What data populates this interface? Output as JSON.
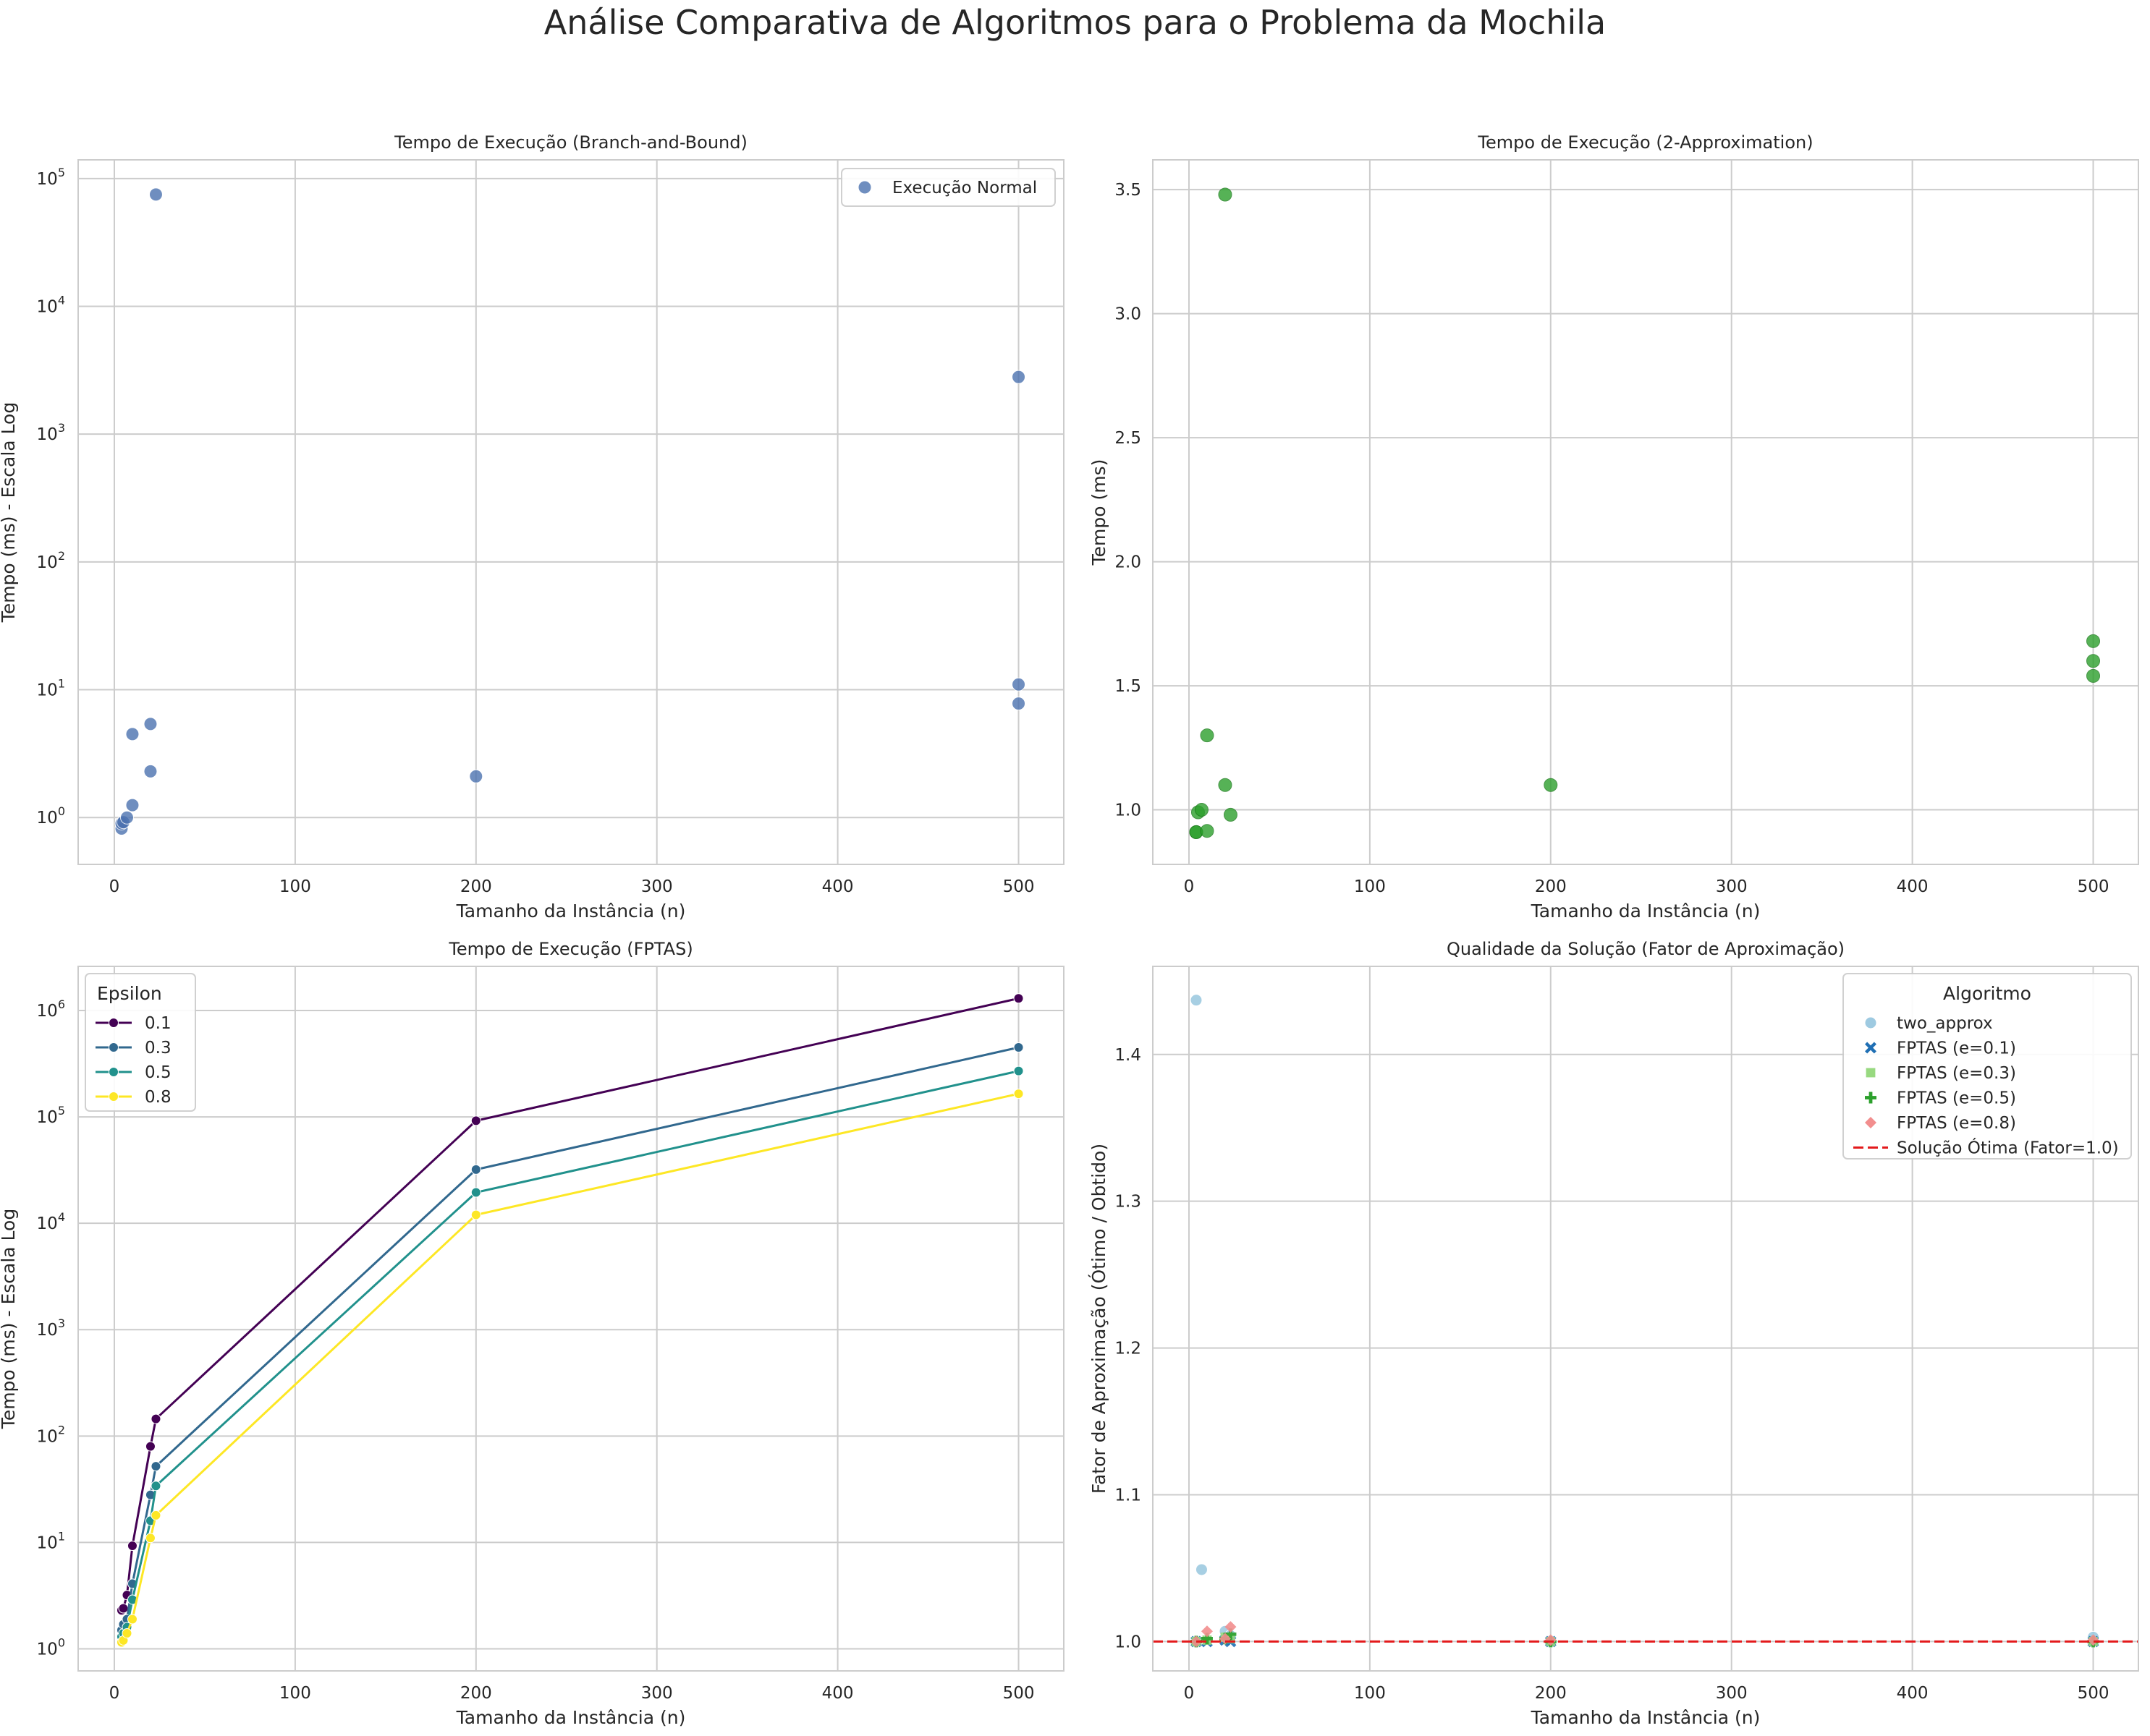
{
  "figure": {
    "suptitle": "Análise Comparativa de Algoritmos para o Problema da Mochila"
  },
  "chart_data": [
    {
      "id": "bnb",
      "type": "scatter",
      "title": "Tempo de Execução (Branch-and-Bound)",
      "xlabel": "Tamanho da Instância (n)",
      "ylabel": "Tempo (ms) - Escala Log",
      "xlim": [
        -20,
        525
      ],
      "ylim": [
        0.43,
        140000
      ],
      "yscale": "log",
      "xticks": [
        0,
        100,
        200,
        300,
        400,
        500
      ],
      "yticks": [
        1,
        10,
        100,
        1000,
        10000,
        100000
      ],
      "ytick_labels": [
        [
          "10",
          "0"
        ],
        [
          "10",
          "1"
        ],
        [
          "10",
          "2"
        ],
        [
          "10",
          "3"
        ],
        [
          "10",
          "4"
        ],
        [
          "10",
          "5"
        ]
      ],
      "grid": true,
      "legend": {
        "position": "top-right",
        "title": ""
      },
      "series": [
        {
          "name": "Execução Normal",
          "color": "#4c72b0",
          "marker": "circle",
          "x": [
            4,
            4,
            5,
            7,
            10,
            10,
            20,
            20,
            23,
            200,
            500,
            500,
            500
          ],
          "y": [
            0.82,
            0.9,
            0.92,
            1.0,
            1.25,
            4.5,
            2.3,
            5.4,
            75000,
            2.1,
            7.8,
            11,
            2800
          ]
        }
      ]
    },
    {
      "id": "two",
      "type": "scatter",
      "title": "Tempo de Execução (2-Approximation)",
      "xlabel": "Tamanho da Instância (n)",
      "ylabel": "Tempo (ms)",
      "xlim": [
        -20,
        525
      ],
      "ylim": [
        0.78,
        3.62
      ],
      "yscale": "linear",
      "xticks": [
        0,
        100,
        200,
        300,
        400,
        500
      ],
      "yticks": [
        1.0,
        1.5,
        2.0,
        2.5,
        3.0,
        3.5
      ],
      "ytick_labels": [
        "1.0",
        "1.5",
        "2.0",
        "2.5",
        "3.0",
        "3.5"
      ],
      "grid": true,
      "series": [
        {
          "name": "",
          "color": "#2ca02c",
          "marker": "circle",
          "x": [
            4,
            4,
            5,
            7,
            10,
            10,
            20,
            20,
            23,
            200,
            500,
            500,
            500
          ],
          "y": [
            0.91,
            0.91,
            0.99,
            1.0,
            0.915,
            1.3,
            1.1,
            3.48,
            0.98,
            1.1,
            1.54,
            1.6,
            1.68
          ]
        }
      ]
    },
    {
      "id": "fptas",
      "type": "line",
      "title": "Tempo de Execução (FPTAS)",
      "xlabel": "Tamanho da Instância (n)",
      "ylabel": "Tempo (ms) - Escala Log",
      "xlim": [
        -20,
        525
      ],
      "ylim": [
        0.62,
        2600000
      ],
      "yscale": "log",
      "xticks": [
        0,
        100,
        200,
        300,
        400,
        500
      ],
      "yticks": [
        1,
        10,
        100,
        1000,
        10000,
        100000,
        1000000
      ],
      "ytick_labels": [
        [
          "10",
          "0"
        ],
        [
          "10",
          "1"
        ],
        [
          "10",
          "2"
        ],
        [
          "10",
          "3"
        ],
        [
          "10",
          "4"
        ],
        [
          "10",
          "5"
        ],
        [
          "10",
          "6"
        ]
      ],
      "grid": true,
      "legend": {
        "position": "top-left",
        "title": "Epsilon"
      },
      "x": [
        4,
        5,
        7,
        10,
        20,
        23,
        200,
        500
      ],
      "series": [
        {
          "name": "0.1",
          "color": "#440154",
          "marker": "circle",
          "values": [
            2.3,
            2.4,
            3.2,
            9.3,
            80,
            145,
            92000,
            1300000
          ]
        },
        {
          "name": "0.3",
          "color": "#31688e",
          "marker": "circle",
          "values": [
            1.5,
            1.7,
            1.9,
            4.1,
            28,
            52,
            32000,
            450000
          ]
        },
        {
          "name": "0.5",
          "color": "#21918c",
          "marker": "circle",
          "values": [
            1.3,
            1.4,
            1.6,
            2.9,
            16,
            34,
            19500,
            270000
          ]
        },
        {
          "name": "0.8",
          "color": "#fde725",
          "marker": "circle",
          "values": [
            1.15,
            1.2,
            1.4,
            1.9,
            11,
            18,
            12000,
            165000
          ]
        }
      ]
    },
    {
      "id": "quality",
      "type": "scatter",
      "title": "Qualidade da Solução (Fator de Aproximação)",
      "xlabel": "Tamanho da Instância (n)",
      "ylabel": "Fator de Aproximação (Ótimo / Obtido)",
      "xlim": [
        -20,
        525
      ],
      "ylim": [
        0.98,
        1.46
      ],
      "yscale": "linear",
      "xticks": [
        0,
        100,
        200,
        300,
        400,
        500
      ],
      "yticks": [
        1.0,
        1.1,
        1.2,
        1.3,
        1.4
      ],
      "ytick_labels": [
        "1.0",
        "1.1",
        "1.2",
        "1.3",
        "1.4"
      ],
      "grid": true,
      "legend": {
        "position": "top-right",
        "title": "Algoritmo"
      },
      "series": [
        {
          "name": "two_approx",
          "color": "#9ecae1",
          "marker": "circle",
          "x": [
            4,
            7,
            20,
            23,
            200,
            500
          ],
          "y": [
            1.437,
            1.049,
            1.007,
            1.004,
            1.0,
            1.003
          ]
        },
        {
          "name": "FPTAS (e=0.1)",
          "color": "#1f6fb4",
          "marker": "x",
          "x": [
            4,
            10,
            20,
            23,
            200,
            500
          ],
          "y": [
            1.0,
            1.0,
            1.001,
            1.0,
            1.0,
            1.0
          ]
        },
        {
          "name": "FPTAS (e=0.3)",
          "color": "#98d980",
          "marker": "square",
          "x": [
            4,
            10,
            20,
            23,
            200,
            500
          ],
          "y": [
            1.0,
            1.001,
            1.003,
            1.002,
            1.0,
            1.0
          ]
        },
        {
          "name": "FPTAS (e=0.5)",
          "color": "#2ca02c",
          "marker": "plus",
          "x": [
            4,
            10,
            20,
            23,
            200,
            500
          ],
          "y": [
            1.0,
            1.002,
            1.002,
            1.005,
            1.0,
            1.0
          ]
        },
        {
          "name": "FPTAS (e=0.8)",
          "color": "#f28e8e",
          "marker": "diamond",
          "x": [
            4,
            10,
            20,
            23,
            200,
            500
          ],
          "y": [
            1.0,
            1.007,
            1.002,
            1.01,
            1.001,
            1.001
          ]
        }
      ],
      "reference_line": {
        "name": "Solução Ótima (Fator=1.0)",
        "y": 1.0,
        "color": "#e31a1c",
        "style": "dashed"
      }
    }
  ]
}
